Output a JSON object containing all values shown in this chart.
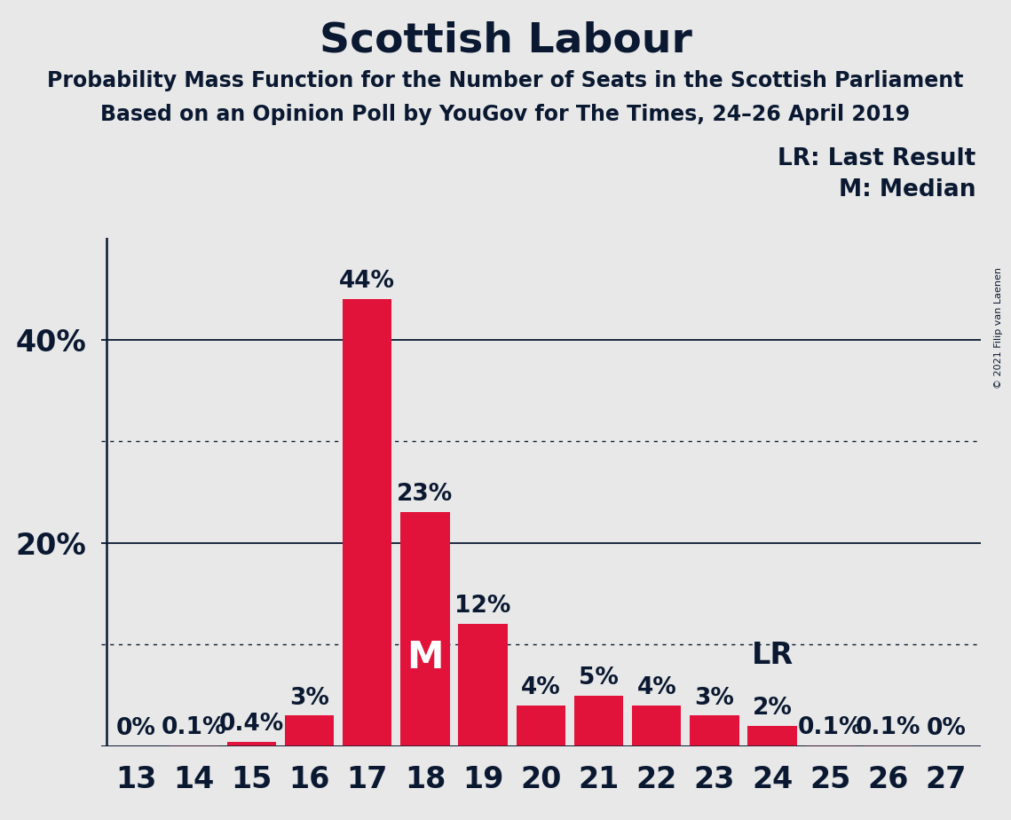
{
  "title": "Scottish Labour",
  "subtitle1": "Probability Mass Function for the Number of Seats in the Scottish Parliament",
  "subtitle2": "Based on an Opinion Poll by YouGov for The Times, 24–26 April 2019",
  "copyright": "© 2021 Filip van Laenen",
  "categories": [
    13,
    14,
    15,
    16,
    17,
    18,
    19,
    20,
    21,
    22,
    23,
    24,
    25,
    26,
    27
  ],
  "values": [
    0.0,
    0.1,
    0.4,
    3.0,
    44.0,
    23.0,
    12.0,
    4.0,
    5.0,
    4.0,
    3.0,
    2.0,
    0.1,
    0.1,
    0.0
  ],
  "bar_color": "#e2133a",
  "background_color": "#e8e8e8",
  "text_color": "#0a1931",
  "yticks": [
    20,
    40
  ],
  "ytick_labels": [
    "20%",
    "40%"
  ],
  "solid_yticks": [
    0,
    20,
    40
  ],
  "dotted_yticks": [
    10,
    30
  ],
  "ylim": [
    0,
    50
  ],
  "median_seat": 18,
  "lr_seat": 24,
  "legend_lr": "LR: Last Result",
  "legend_m": "M: Median",
  "bar_labels": {
    "13": "0%",
    "14": "0.1%",
    "15": "0.4%",
    "16": "3%",
    "17": "44%",
    "18": "23%",
    "19": "12%",
    "20": "4%",
    "21": "5%",
    "22": "4%",
    "23": "3%",
    "24": "2%",
    "25": "0.1%",
    "26": "0.1%",
    "27": "0%"
  }
}
